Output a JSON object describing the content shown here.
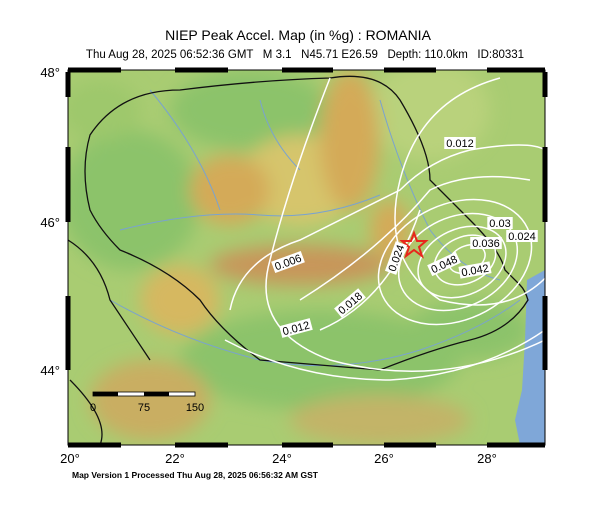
{
  "header": {
    "title": "NIEP Peak Accel. Map (in %g) : ROMANIA",
    "subtitle": "Thu Aug 28, 2025 06:52:36 GMT   M 3.1   N45.71 E26.59   Depth: 110.0km   ID:80331"
  },
  "map": {
    "lat_labels": [
      "48°",
      "46°",
      "44°"
    ],
    "lon_labels": [
      "20°",
      "22°",
      "24°",
      "26°",
      "28°"
    ],
    "contour_labels": [
      "0.012",
      "0.006",
      "0.018",
      "0.012",
      "0.024",
      "0.048",
      "0.036",
      "0.03",
      "0.024",
      "0.042"
    ],
    "scale_labels": [
      "0",
      "75",
      "150"
    ]
  },
  "footer": "Map Version 1 Processed Thu Aug 28, 2025 06:56:32 AM GST"
}
